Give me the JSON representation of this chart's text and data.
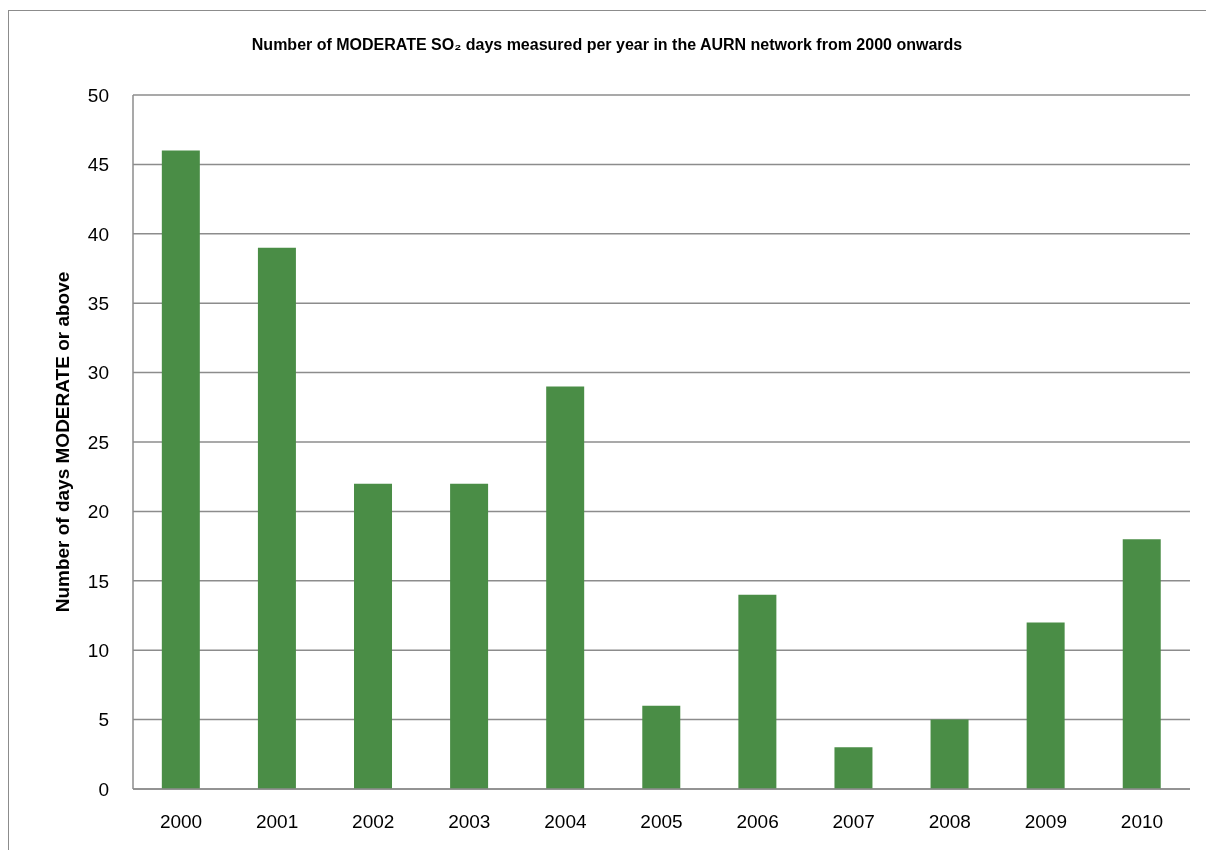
{
  "chart_data": {
    "type": "bar",
    "title": "Number of MODERATE SO₂ days measured per year in the AURN network from 2000 onwards",
    "ylabel": "Number of days MODERATE or above",
    "categories": [
      "2000",
      "2001",
      "2002",
      "2003",
      "2004",
      "2005",
      "2006",
      "2007",
      "2008",
      "2009",
      "2010"
    ],
    "values": [
      46,
      39,
      22,
      22,
      29,
      6,
      14,
      3,
      5,
      12,
      18
    ],
    "color": "#4a8d46",
    "ylim": [
      0,
      50
    ],
    "yticks": [
      0,
      5,
      10,
      15,
      20,
      25,
      30,
      35,
      40,
      45,
      50
    ],
    "grid": "y"
  }
}
